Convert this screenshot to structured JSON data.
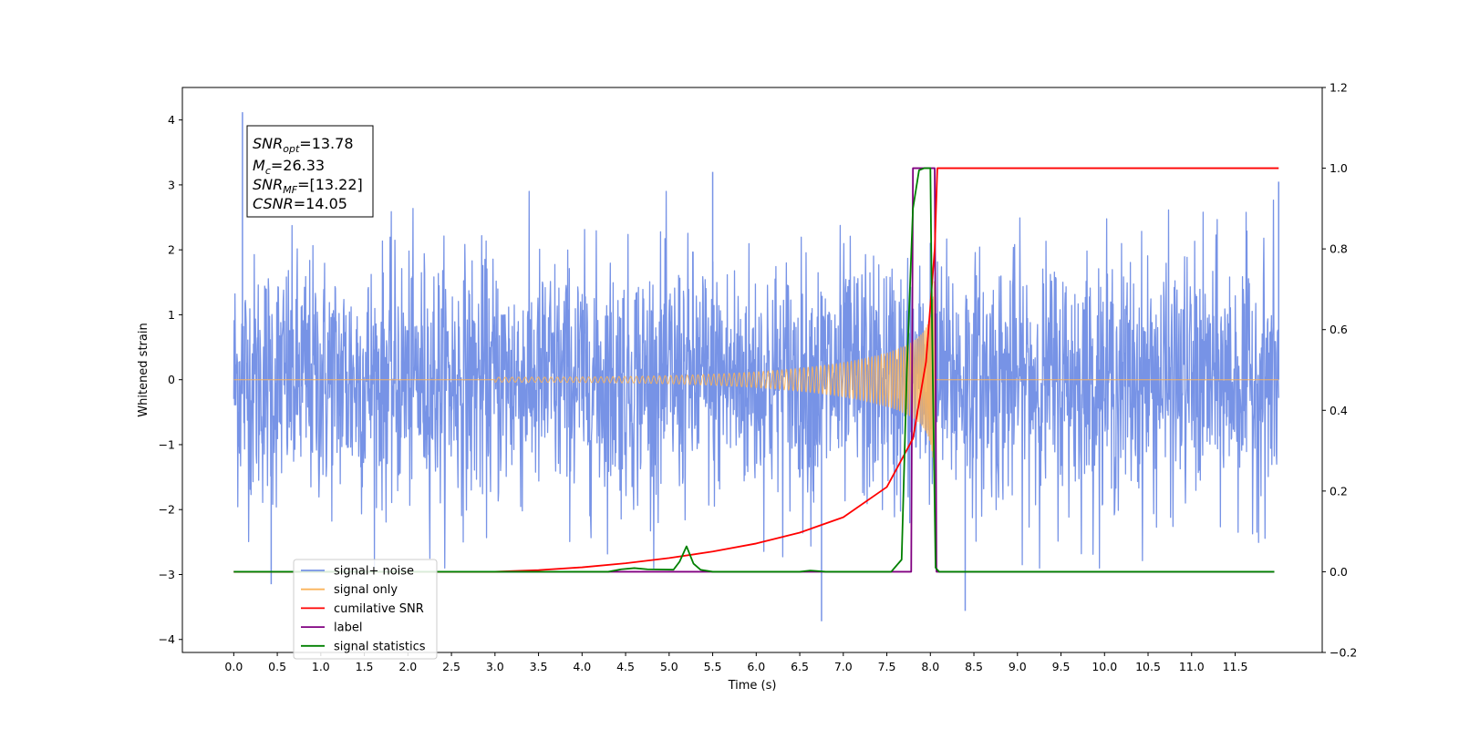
{
  "chart_data": {
    "type": "line",
    "xlabel": "Time (s)",
    "ylabel_left": "Whitened strain",
    "xlim": [
      -0.59,
      12.5
    ],
    "ylim_left": [
      -4.2,
      4.5
    ],
    "ylim_right": [
      -0.2,
      1.2
    ],
    "x_ticks": [
      "0.0",
      "0.5",
      "1.0",
      "1.5",
      "2.0",
      "2.5",
      "3.0",
      "3.5",
      "4.0",
      "4.5",
      "5.0",
      "5.5",
      "6.0",
      "6.5",
      "7.0",
      "7.5",
      "8.0",
      "8.5",
      "9.0",
      "9.5",
      "10.0",
      "10.5",
      "11.0",
      "11.5"
    ],
    "y_ticks_left": [
      "4",
      "3",
      "2",
      "1",
      "0",
      "−1",
      "−2",
      "−3",
      "−4"
    ],
    "y_ticks_right": [
      "1.2",
      "1.0",
      "0.8",
      "0.6",
      "0.4",
      "0.2",
      "0.0",
      "−0.2"
    ],
    "legend_placement": "lower-left",
    "grid": false,
    "annotation": {
      "snr_opt": "=13.78",
      "mc": "=26.33",
      "snr_mf": "=[13.22]",
      "csnr": "=14.05"
    },
    "series": [
      {
        "name": "signal+ noise",
        "axis": "left",
        "color": "#7793e6",
        "x_range": [
          0.0,
          12.0
        ],
        "approx_amplitude_range": [
          -2.9,
          4.1
        ],
        "outliers": [
          [
            0.1,
            4.12
          ],
          [
            0.43,
            -3.15
          ],
          [
            5.5,
            3.2
          ],
          [
            6.75,
            -3.72
          ],
          [
            8.4,
            -3.56
          ],
          [
            12.0,
            3.05
          ]
        ]
      },
      {
        "name": "signal only",
        "axis": "left",
        "color": "#fbb45a",
        "chirp_start": 3.0,
        "merger_time": 8.05,
        "peak_amplitude": 1.9
      },
      {
        "name": "cumilative SNR",
        "axis": "right",
        "color": "#ff0000",
        "x": [
          0.0,
          3.0,
          3.5,
          4.0,
          4.5,
          5.0,
          5.5,
          6.0,
          6.5,
          7.0,
          7.5,
          7.8,
          7.95,
          8.05,
          8.08,
          12.0
        ],
        "y": [
          0.0,
          0.0,
          0.004,
          0.011,
          0.021,
          0.034,
          0.05,
          0.07,
          0.097,
          0.135,
          0.21,
          0.33,
          0.52,
          0.8,
          1.0,
          1.0
        ]
      },
      {
        "name": "label",
        "axis": "right",
        "color": "#800080",
        "x": [
          0.0,
          7.78,
          7.8,
          8.05,
          8.07,
          11.95
        ],
        "y": [
          0.0,
          0.0,
          1.0,
          1.0,
          0.0,
          0.0
        ]
      },
      {
        "name": "signal statistics",
        "axis": "right",
        "color": "#008000",
        "x": [
          0.0,
          4.3,
          4.45,
          4.6,
          4.75,
          5.05,
          5.12,
          5.2,
          5.28,
          5.36,
          5.5,
          6.5,
          6.62,
          6.8,
          7.55,
          7.67,
          7.73,
          7.8,
          7.87,
          7.93,
          8.0,
          8.02,
          8.06,
          8.1,
          11.95
        ],
        "y": [
          0.0,
          0.0,
          0.006,
          0.009,
          0.006,
          0.005,
          0.025,
          0.063,
          0.02,
          0.005,
          0.0,
          0.0,
          0.003,
          0.0,
          0.0,
          0.03,
          0.5,
          0.9,
          0.995,
          1.0,
          1.0,
          0.6,
          0.01,
          0.0,
          0.0
        ]
      }
    ]
  }
}
